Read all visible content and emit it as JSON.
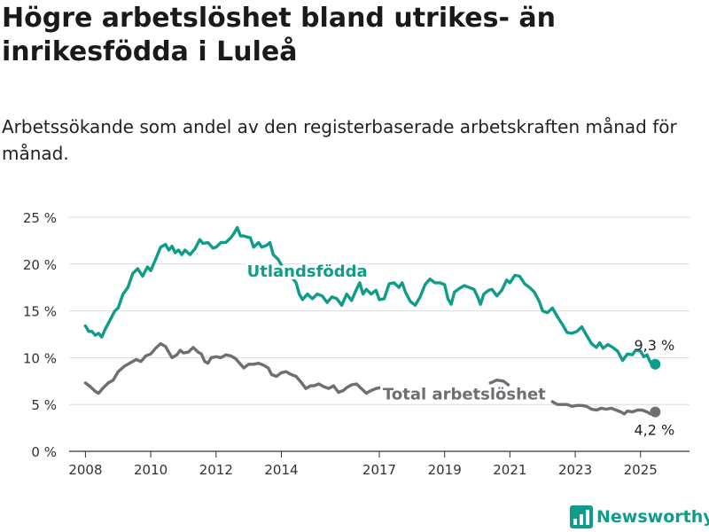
{
  "title": "Högre arbetslöshet bland utrikes- än inrikesfödda i Luleå",
  "subtitle": "Arbetssökande som andel av den registerbaserade arbetskraften månad för månad.",
  "brand": "Newsworthy",
  "colors": {
    "foreign": "#0f9d8a",
    "total": "#6e6e75",
    "grid": "#dcdcdc",
    "axis": "#333333"
  },
  "chart_data": {
    "type": "line",
    "title": "Högre arbetslöshet bland utrikes- än inrikesfödda i Luleå",
    "xlabel": "",
    "ylabel": "",
    "xlim": [
      2007.5,
      2026.5
    ],
    "ylim": [
      0,
      25
    ],
    "x_ticks": [
      2008,
      2010,
      2012,
      2014,
      2017,
      2019,
      2021,
      2023,
      2025
    ],
    "x_tick_labels": [
      "2008",
      "2010",
      "2012",
      "2014",
      "2017",
      "2019",
      "2021",
      "2023",
      "2025"
    ],
    "y_ticks": [
      0,
      5,
      10,
      15,
      20,
      25
    ],
    "y_tick_labels": [
      "0 %",
      "5 %",
      "10 %",
      "15 %",
      "20 %",
      "25 %"
    ],
    "grid": true,
    "series": [
      {
        "name": "Utlandsfödda",
        "color": "#0f9d8a",
        "end_label": "9,3 %",
        "points": [
          [
            2008.0,
            13.4
          ],
          [
            2008.1,
            12.8
          ],
          [
            2008.2,
            12.8
          ],
          [
            2008.3,
            12.4
          ],
          [
            2008.4,
            12.6
          ],
          [
            2008.5,
            12.2
          ],
          [
            2008.6,
            13.0
          ],
          [
            2008.75,
            14.0
          ],
          [
            2008.9,
            15.0
          ],
          [
            2009.0,
            15.3
          ],
          [
            2009.15,
            16.8
          ],
          [
            2009.3,
            17.5
          ],
          [
            2009.45,
            19.0
          ],
          [
            2009.6,
            19.5
          ],
          [
            2009.75,
            18.7
          ],
          [
            2009.9,
            19.7
          ],
          [
            2010.0,
            19.3
          ],
          [
            2010.15,
            20.5
          ],
          [
            2010.3,
            21.8
          ],
          [
            2010.45,
            22.1
          ],
          [
            2010.55,
            21.5
          ],
          [
            2010.65,
            21.9
          ],
          [
            2010.75,
            21.2
          ],
          [
            2010.85,
            21.5
          ],
          [
            2010.95,
            21.0
          ],
          [
            2011.05,
            21.5
          ],
          [
            2011.2,
            21.0
          ],
          [
            2011.35,
            21.6
          ],
          [
            2011.5,
            22.6
          ],
          [
            2011.6,
            22.2
          ],
          [
            2011.75,
            22.3
          ],
          [
            2011.9,
            21.7
          ],
          [
            2012.0,
            21.8
          ],
          [
            2012.15,
            22.3
          ],
          [
            2012.3,
            22.3
          ],
          [
            2012.45,
            22.8
          ],
          [
            2012.55,
            23.3
          ],
          [
            2012.65,
            23.9
          ],
          [
            2012.75,
            23.0
          ],
          [
            2012.85,
            23.0
          ],
          [
            2012.95,
            22.9
          ],
          [
            2013.05,
            22.8
          ],
          [
            2013.15,
            21.8
          ],
          [
            2013.3,
            22.3
          ],
          [
            2013.4,
            21.8
          ],
          [
            2013.55,
            22.0
          ],
          [
            2013.65,
            22.3
          ],
          [
            2013.75,
            21.0
          ],
          [
            2013.9,
            20.5
          ],
          [
            2014.0,
            19.9
          ],
          [
            2014.15,
            19.1
          ],
          [
            2014.3,
            18.7
          ],
          [
            2014.45,
            18.0
          ],
          [
            2014.55,
            16.8
          ],
          [
            2014.65,
            16.2
          ],
          [
            2014.8,
            16.8
          ],
          [
            2014.95,
            16.3
          ],
          [
            2015.1,
            16.8
          ],
          [
            2015.25,
            16.6
          ],
          [
            2015.4,
            15.9
          ],
          [
            2015.55,
            16.5
          ],
          [
            2015.7,
            16.3
          ],
          [
            2015.85,
            15.6
          ],
          [
            2016.0,
            16.8
          ],
          [
            2016.15,
            16.1
          ],
          [
            2016.3,
            17.3
          ],
          [
            2016.4,
            18.0
          ],
          [
            2016.5,
            16.8
          ],
          [
            2016.6,
            17.3
          ],
          [
            2016.75,
            16.8
          ],
          [
            2016.9,
            17.2
          ],
          [
            2017.0,
            16.2
          ],
          [
            2017.15,
            16.3
          ],
          [
            2017.3,
            17.9
          ],
          [
            2017.45,
            18.0
          ],
          [
            2017.6,
            17.5
          ],
          [
            2017.7,
            18.0
          ],
          [
            2017.8,
            17.0
          ],
          [
            2017.95,
            16.0
          ],
          [
            2018.1,
            15.6
          ],
          [
            2018.25,
            16.5
          ],
          [
            2018.4,
            17.8
          ],
          [
            2018.55,
            18.4
          ],
          [
            2018.7,
            18.0
          ],
          [
            2018.85,
            18.0
          ],
          [
            2019.0,
            17.8
          ],
          [
            2019.1,
            16.3
          ],
          [
            2019.2,
            15.7
          ],
          [
            2019.3,
            17.0
          ],
          [
            2019.45,
            17.4
          ],
          [
            2019.6,
            17.7
          ],
          [
            2019.75,
            17.5
          ],
          [
            2019.9,
            17.3
          ],
          [
            2020.0,
            16.6
          ],
          [
            2020.1,
            15.7
          ],
          [
            2020.2,
            16.8
          ],
          [
            2020.35,
            17.2
          ],
          [
            2020.45,
            17.3
          ],
          [
            2020.6,
            16.6
          ],
          [
            2020.75,
            17.2
          ],
          [
            2020.9,
            18.3
          ],
          [
            2021.0,
            18.0
          ],
          [
            2021.15,
            18.8
          ],
          [
            2021.3,
            18.7
          ],
          [
            2021.45,
            17.9
          ],
          [
            2021.6,
            17.5
          ],
          [
            2021.75,
            17.0
          ],
          [
            2021.9,
            16.0
          ],
          [
            2022.0,
            15.0
          ],
          [
            2022.15,
            14.8
          ],
          [
            2022.3,
            15.3
          ],
          [
            2022.45,
            14.4
          ],
          [
            2022.6,
            13.6
          ],
          [
            2022.75,
            12.7
          ],
          [
            2022.9,
            12.6
          ],
          [
            2023.05,
            12.8
          ],
          [
            2023.2,
            13.3
          ],
          [
            2023.35,
            12.4
          ],
          [
            2023.5,
            11.5
          ],
          [
            2023.65,
            11.1
          ],
          [
            2023.75,
            11.6
          ],
          [
            2023.85,
            11.0
          ],
          [
            2024.0,
            11.4
          ],
          [
            2024.15,
            11.1
          ],
          [
            2024.3,
            10.7
          ],
          [
            2024.45,
            9.7
          ],
          [
            2024.6,
            10.4
          ],
          [
            2024.75,
            10.3
          ],
          [
            2024.85,
            10.8
          ],
          [
            2025.0,
            10.7
          ],
          [
            2025.1,
            10.1
          ],
          [
            2025.2,
            10.3
          ],
          [
            2025.3,
            9.5
          ],
          [
            2025.45,
            9.3
          ]
        ]
      },
      {
        "name": "Total arbetslöshet",
        "color": "#6e6e75",
        "end_label": "4,2 %",
        "points": [
          [
            2008.0,
            7.3
          ],
          [
            2008.15,
            6.9
          ],
          [
            2008.3,
            6.4
          ],
          [
            2008.4,
            6.2
          ],
          [
            2008.55,
            6.8
          ],
          [
            2008.7,
            7.3
          ],
          [
            2008.85,
            7.6
          ],
          [
            2009.0,
            8.5
          ],
          [
            2009.2,
            9.1
          ],
          [
            2009.4,
            9.5
          ],
          [
            2009.55,
            9.8
          ],
          [
            2009.7,
            9.6
          ],
          [
            2009.85,
            10.2
          ],
          [
            2010.0,
            10.4
          ],
          [
            2010.15,
            11.0
          ],
          [
            2010.3,
            11.5
          ],
          [
            2010.45,
            11.2
          ],
          [
            2010.55,
            10.6
          ],
          [
            2010.65,
            10.0
          ],
          [
            2010.8,
            10.3
          ],
          [
            2010.9,
            10.8
          ],
          [
            2011.0,
            10.5
          ],
          [
            2011.15,
            10.6
          ],
          [
            2011.3,
            11.1
          ],
          [
            2011.45,
            10.6
          ],
          [
            2011.55,
            10.4
          ],
          [
            2011.65,
            9.6
          ],
          [
            2011.75,
            9.4
          ],
          [
            2011.85,
            10.0
          ],
          [
            2012.0,
            10.1
          ],
          [
            2012.15,
            10.0
          ],
          [
            2012.3,
            10.3
          ],
          [
            2012.45,
            10.2
          ],
          [
            2012.6,
            9.9
          ],
          [
            2012.7,
            9.5
          ],
          [
            2012.85,
            8.9
          ],
          [
            2013.0,
            9.3
          ],
          [
            2013.15,
            9.3
          ],
          [
            2013.3,
            9.4
          ],
          [
            2013.45,
            9.2
          ],
          [
            2013.6,
            8.9
          ],
          [
            2013.7,
            8.2
          ],
          [
            2013.85,
            8.0
          ],
          [
            2014.0,
            8.4
          ],
          [
            2014.15,
            8.5
          ],
          [
            2014.3,
            8.2
          ],
          [
            2014.45,
            8.0
          ],
          [
            2014.6,
            7.4
          ],
          [
            2014.75,
            6.7
          ],
          [
            2014.9,
            7.0
          ],
          [
            2015.0,
            7.0
          ],
          [
            2015.15,
            7.2
          ],
          [
            2015.3,
            6.9
          ],
          [
            2015.45,
            6.7
          ],
          [
            2015.6,
            7.0
          ],
          [
            2015.75,
            6.3
          ],
          [
            2015.9,
            6.5
          ],
          [
            2016.0,
            6.8
          ],
          [
            2016.15,
            7.1
          ],
          [
            2016.3,
            7.2
          ],
          [
            2016.45,
            6.7
          ],
          [
            2016.6,
            6.2
          ],
          [
            2016.75,
            6.5
          ],
          [
            2016.9,
            6.7
          ],
          [
            2017.05,
            6.8
          ]
        ]
      },
      {
        "name": "",
        "color": "#6e6e75",
        "points": [
          [
            2020.4,
            7.3
          ],
          [
            2020.6,
            7.6
          ],
          [
            2020.8,
            7.5
          ],
          [
            2020.95,
            7.1
          ]
        ]
      },
      {
        "name": "",
        "color": "#6e6e75",
        "points": [
          [
            2022.3,
            5.3
          ],
          [
            2022.45,
            5.0
          ],
          [
            2022.6,
            5.0
          ],
          [
            2022.75,
            5.0
          ],
          [
            2022.9,
            4.8
          ],
          [
            2023.05,
            4.9
          ],
          [
            2023.2,
            4.9
          ],
          [
            2023.35,
            4.8
          ],
          [
            2023.5,
            4.5
          ],
          [
            2023.65,
            4.4
          ],
          [
            2023.8,
            4.6
          ],
          [
            2023.95,
            4.5
          ],
          [
            2024.1,
            4.6
          ],
          [
            2024.25,
            4.4
          ],
          [
            2024.4,
            4.2
          ],
          [
            2024.5,
            4.0
          ],
          [
            2024.6,
            4.3
          ],
          [
            2024.75,
            4.2
          ],
          [
            2024.9,
            4.4
          ],
          [
            2025.05,
            4.4
          ],
          [
            2025.2,
            4.2
          ],
          [
            2025.3,
            4.0
          ],
          [
            2025.45,
            4.2
          ]
        ]
      }
    ]
  }
}
